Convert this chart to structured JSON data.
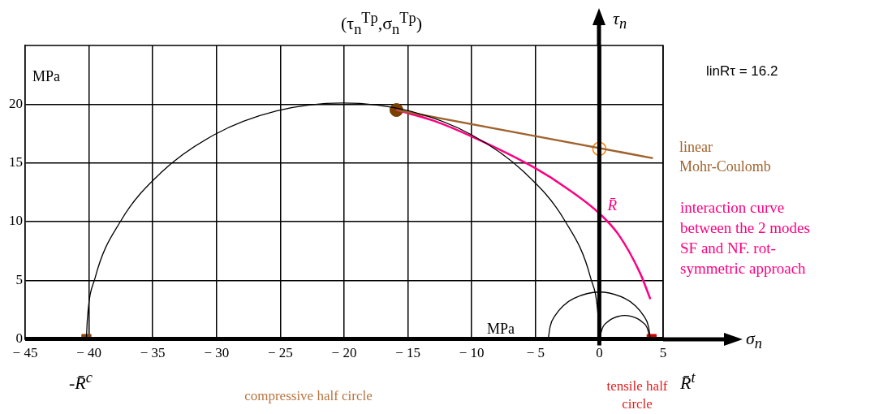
{
  "chart_data": {
    "type": "line",
    "title": "(τ$_{n}$$^{Tp}$,σ$_{n}$$^{Tp}$)",
    "xlabel": "σ$_{n}$",
    "ylabel": "τ$_{n}$",
    "xlim": [
      -45,
      5
    ],
    "ylim": [
      0,
      25
    ],
    "xticks": [
      -45,
      -40,
      -35,
      -30,
      -25,
      -20,
      -15,
      -10,
      -5,
      0,
      5
    ],
    "yticks": [
      0,
      5,
      10,
      15,
      20
    ],
    "grid": true,
    "series": [
      {
        "color": "#000000",
        "marker": "none",
        "x": [
          -40.2,
          -40.12,
          -39.52,
          -37.51,
          -34.31,
          -30.15,
          -25.3,
          -20.1,
          -14.9,
          -10.05,
          -5.89,
          -2.69,
          -0.68,
          -0.08,
          0
        ],
        "values": [
          0,
          1.75,
          5.2,
          10.05,
          14.21,
          17.41,
          19.42,
          20.1,
          19.42,
          17.41,
          14.21,
          10.05,
          5.2,
          1.75,
          0
        ]
      },
      {
        "color": "#000000",
        "marker": "none",
        "x": [
          -4,
          -3.86,
          -3.46,
          -2.83,
          -2,
          0,
          2,
          2.83,
          3.46,
          3.86,
          4
        ],
        "values": [
          0,
          1.04,
          2,
          2.83,
          3.46,
          4,
          3.46,
          2.83,
          2,
          1.04,
          0
        ]
      },
      {
        "color": "#000000",
        "marker": "none",
        "x": [
          0,
          0.27,
          0.59,
          1,
          2,
          3,
          3.41,
          3.73,
          4
        ],
        "values": [
          0,
          1,
          1.41,
          1.73,
          2,
          1.73,
          1.41,
          1,
          0
        ]
      },
      {
        "name": "linear Mohr-Coulomb",
        "color": "#a0622d",
        "marker": "none",
        "x": [
          -15.9,
          4.2
        ],
        "values": [
          19.5,
          15.4
        ]
      },
      {
        "name": "R̄",
        "color": "#ff0080",
        "marker": "none",
        "x": [
          -15.9,
          -13,
          -9.9,
          -5.1,
          -2.5,
          0,
          1.5,
          3.2,
          4
        ],
        "values": [
          19.5,
          18.6,
          17.2,
          14.6,
          12.8,
          10.7,
          8.9,
          5.6,
          3.4
        ]
      },
      {
        "type": "scatter",
        "color": "#7b3f00",
        "marker": "circle",
        "x": [
          -15.9
        ],
        "values": [
          19.5
        ]
      },
      {
        "type": "scatter",
        "color": "#ff8000",
        "marker": "open-circle",
        "x": [
          0
        ],
        "values": [
          16.2
        ]
      },
      {
        "type": "scatter",
        "color": "#8b4513",
        "marker": "square",
        "x": [
          -40.2
        ],
        "values": [
          0
        ]
      },
      {
        "type": "scatter",
        "color": "#d40000",
        "marker": "square",
        "x": [
          4.1
        ],
        "values": [
          0
        ]
      }
    ],
    "annotations": [
      "MPa",
      "MPa",
      "linRτ = 16.2",
      "interaction curve between the 2 modes SF and NF. rot- symmetric approach",
      "-R̄$^{c}$",
      "R̄$^{t}$",
      "compressive half circle",
      "tensile half circle"
    ]
  }
}
